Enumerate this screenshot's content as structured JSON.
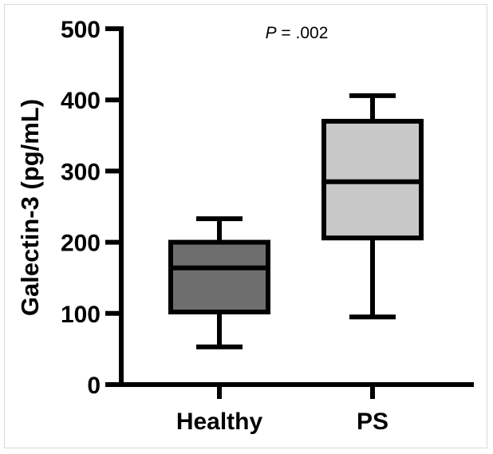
{
  "chart_data": {
    "type": "box",
    "title": "",
    "xlabel": "",
    "ylabel": "Galectin-3 (pg/mL)",
    "ylim": [
      0,
      500
    ],
    "yticks": [
      0,
      100,
      200,
      300,
      400,
      500
    ],
    "annotation": {
      "italic": "P",
      "rest": " = .002"
    },
    "categories": [
      "Healthy",
      "PS"
    ],
    "boxes": [
      {
        "name": "Healthy",
        "min": 53,
        "q1": 102,
        "median": 164,
        "q3": 200,
        "max": 233,
        "fill": "#6e6e6e"
      },
      {
        "name": "PS",
        "min": 95,
        "q1": 206,
        "median": 285,
        "q3": 370,
        "max": 406,
        "fill": "#c8c8c8"
      }
    ],
    "grid": false
  }
}
